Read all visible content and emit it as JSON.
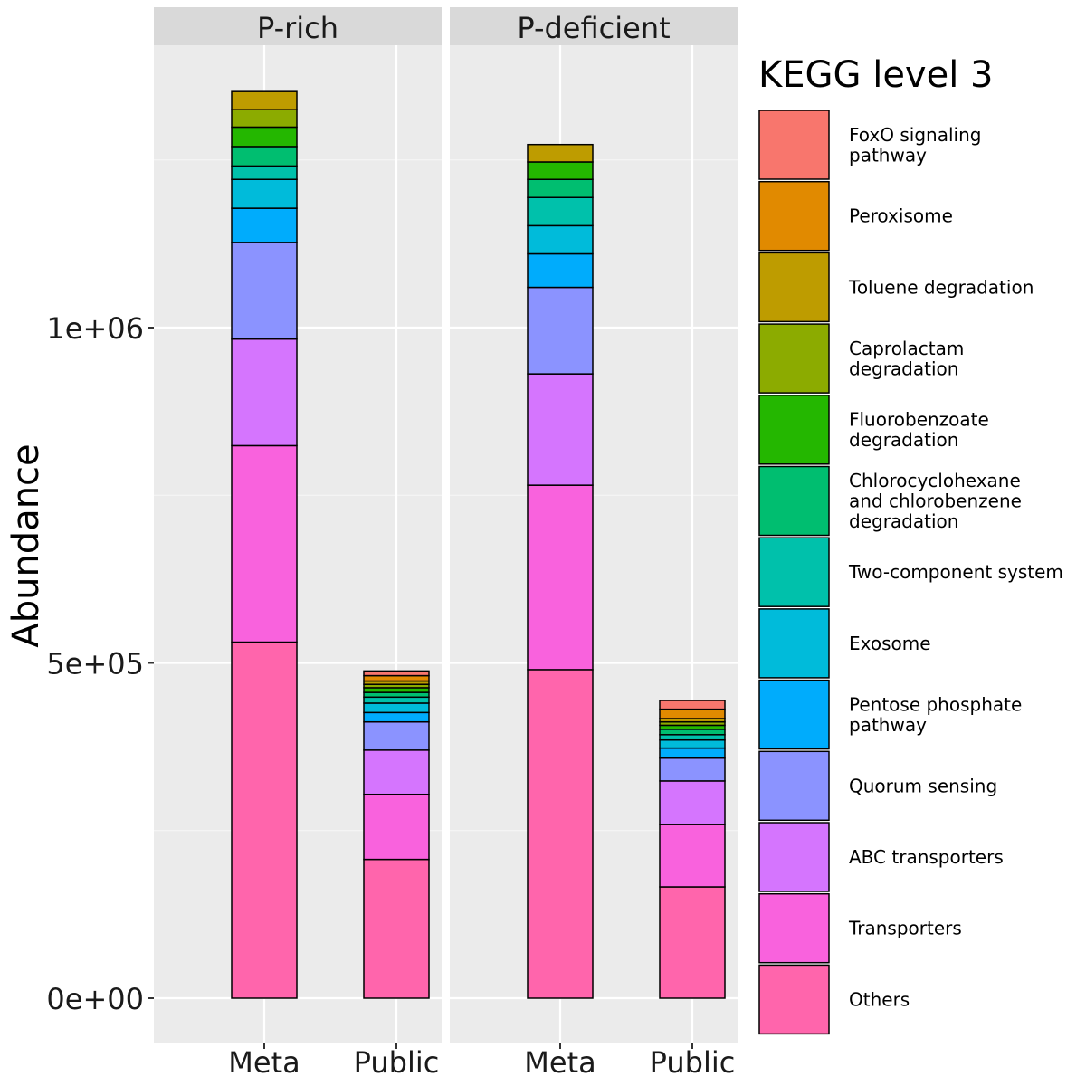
{
  "chart_data": {
    "type": "bar",
    "stacked": true,
    "ylabel": "Abundance",
    "xlabel": "",
    "ylim": [
      -65000,
      1480000
    ],
    "y_ticks": [
      {
        "value": 0,
        "label": "0e+00"
      },
      {
        "value": 500000,
        "label": "5e+05"
      },
      {
        "value": 1000000,
        "label": "1e+06"
      }
    ],
    "y_minor_ticks": [
      250000,
      750000,
      1250000
    ],
    "grid": true,
    "legend_position": "right",
    "legend_title": "KEGG level 3",
    "categories": [
      "Meta",
      "Public"
    ],
    "series": [
      {
        "name": "FoxO signaling pathway",
        "color": "#F8766D",
        "label_lines": [
          "FoxO signaling",
          "pathway"
        ]
      },
      {
        "name": "Peroxisome",
        "color": "#E18A00",
        "label_lines": [
          "Peroxisome"
        ]
      },
      {
        "name": "Toluene degradation",
        "color": "#BE9C00",
        "label_lines": [
          "Toluene degradation"
        ]
      },
      {
        "name": "Caprolactam degradation",
        "color": "#8CAB00",
        "label_lines": [
          "Caprolactam",
          "degradation"
        ]
      },
      {
        "name": "Fluorobenzoate degradation",
        "color": "#24B700",
        "label_lines": [
          "Fluorobenzoate",
          "degradation"
        ]
      },
      {
        "name": "Chlorocyclohexane and chlorobenzene degradation",
        "color": "#00BE70",
        "label_lines": [
          "Chlorocyclohexane",
          "and chlorobenzene",
          "degradation"
        ]
      },
      {
        "name": "Two-component system",
        "color": "#00C1AB",
        "label_lines": [
          "Two-component system"
        ]
      },
      {
        "name": "Exosome",
        "color": "#00BBDA",
        "label_lines": [
          "Exosome"
        ]
      },
      {
        "name": "Pentose phosphate pathway",
        "color": "#00ACFC",
        "label_lines": [
          "Pentose phosphate",
          "pathway"
        ]
      },
      {
        "name": "Quorum sensing",
        "color": "#8B93FF",
        "label_lines": [
          "Quorum sensing"
        ]
      },
      {
        "name": "ABC transporters",
        "color": "#D575FE",
        "label_lines": [
          "ABC transporters"
        ]
      },
      {
        "name": "Transporters",
        "color": "#F962DD",
        "label_lines": [
          "Transporters"
        ]
      },
      {
        "name": "Others",
        "color": "#FF65AC",
        "label_lines": [
          "Others"
        ]
      }
    ],
    "panels": [
      {
        "title": "P-rich",
        "bars": [
          {
            "category": "Meta",
            "values": {
              "Others": 531000,
              "Transporters": 293000,
              "ABC transporters": 159000,
              "Quorum sensing": 144000,
              "Pentose phosphate pathway": 51000,
              "Exosome": 43000,
              "Two-component system": 20000,
              "Chlorocyclohexane and chlorobenzene degradation": 29000,
              "Fluorobenzoate degradation": 29000,
              "Caprolactam degradation": 26000,
              "Toluene degradation": 27000,
              "Peroxisome": 0,
              "FoxO signaling pathway": 0
            }
          },
          {
            "category": "Public",
            "values": {
              "Others": 207000,
              "Transporters": 97000,
              "ABC transporters": 66000,
              "Quorum sensing": 42000,
              "Pentose phosphate pathway": 14000,
              "Exosome": 14000,
              "Two-component system": 9000,
              "Chlorocyclohexane and chlorobenzene degradation": 7000,
              "Fluorobenzoate degradation": 7000,
              "Caprolactam degradation": 5000,
              "Toluene degradation": 5000,
              "Peroxisome": 8000,
              "FoxO signaling pathway": 7000
            }
          }
        ]
      },
      {
        "title": "P-deficient",
        "bars": [
          {
            "category": "Meta",
            "values": {
              "Others": 490000,
              "Transporters": 275000,
              "ABC transporters": 166000,
              "Quorum sensing": 129000,
              "Pentose phosphate pathway": 50000,
              "Exosome": 42000,
              "Two-component system": 42000,
              "Chlorocyclohexane and chlorobenzene degradation": 27000,
              "Fluorobenzoate degradation": 26000,
              "Caprolactam degradation": 0,
              "Toluene degradation": 26000,
              "Peroxisome": 0,
              "FoxO signaling pathway": 0
            }
          },
          {
            "category": "Public",
            "values": {
              "Others": 166000,
              "Transporters": 93000,
              "ABC transporters": 65000,
              "Quorum sensing": 34000,
              "Pentose phosphate pathway": 15000,
              "Exosome": 12000,
              "Two-component system": 8000,
              "Chlorocyclohexane and chlorobenzene degradation": 8000,
              "Fluorobenzoate degradation": 6000,
              "Caprolactam degradation": 5000,
              "Toluene degradation": 5000,
              "Peroxisome": 14000,
              "FoxO signaling pathway": 13000
            }
          }
        ]
      }
    ]
  }
}
